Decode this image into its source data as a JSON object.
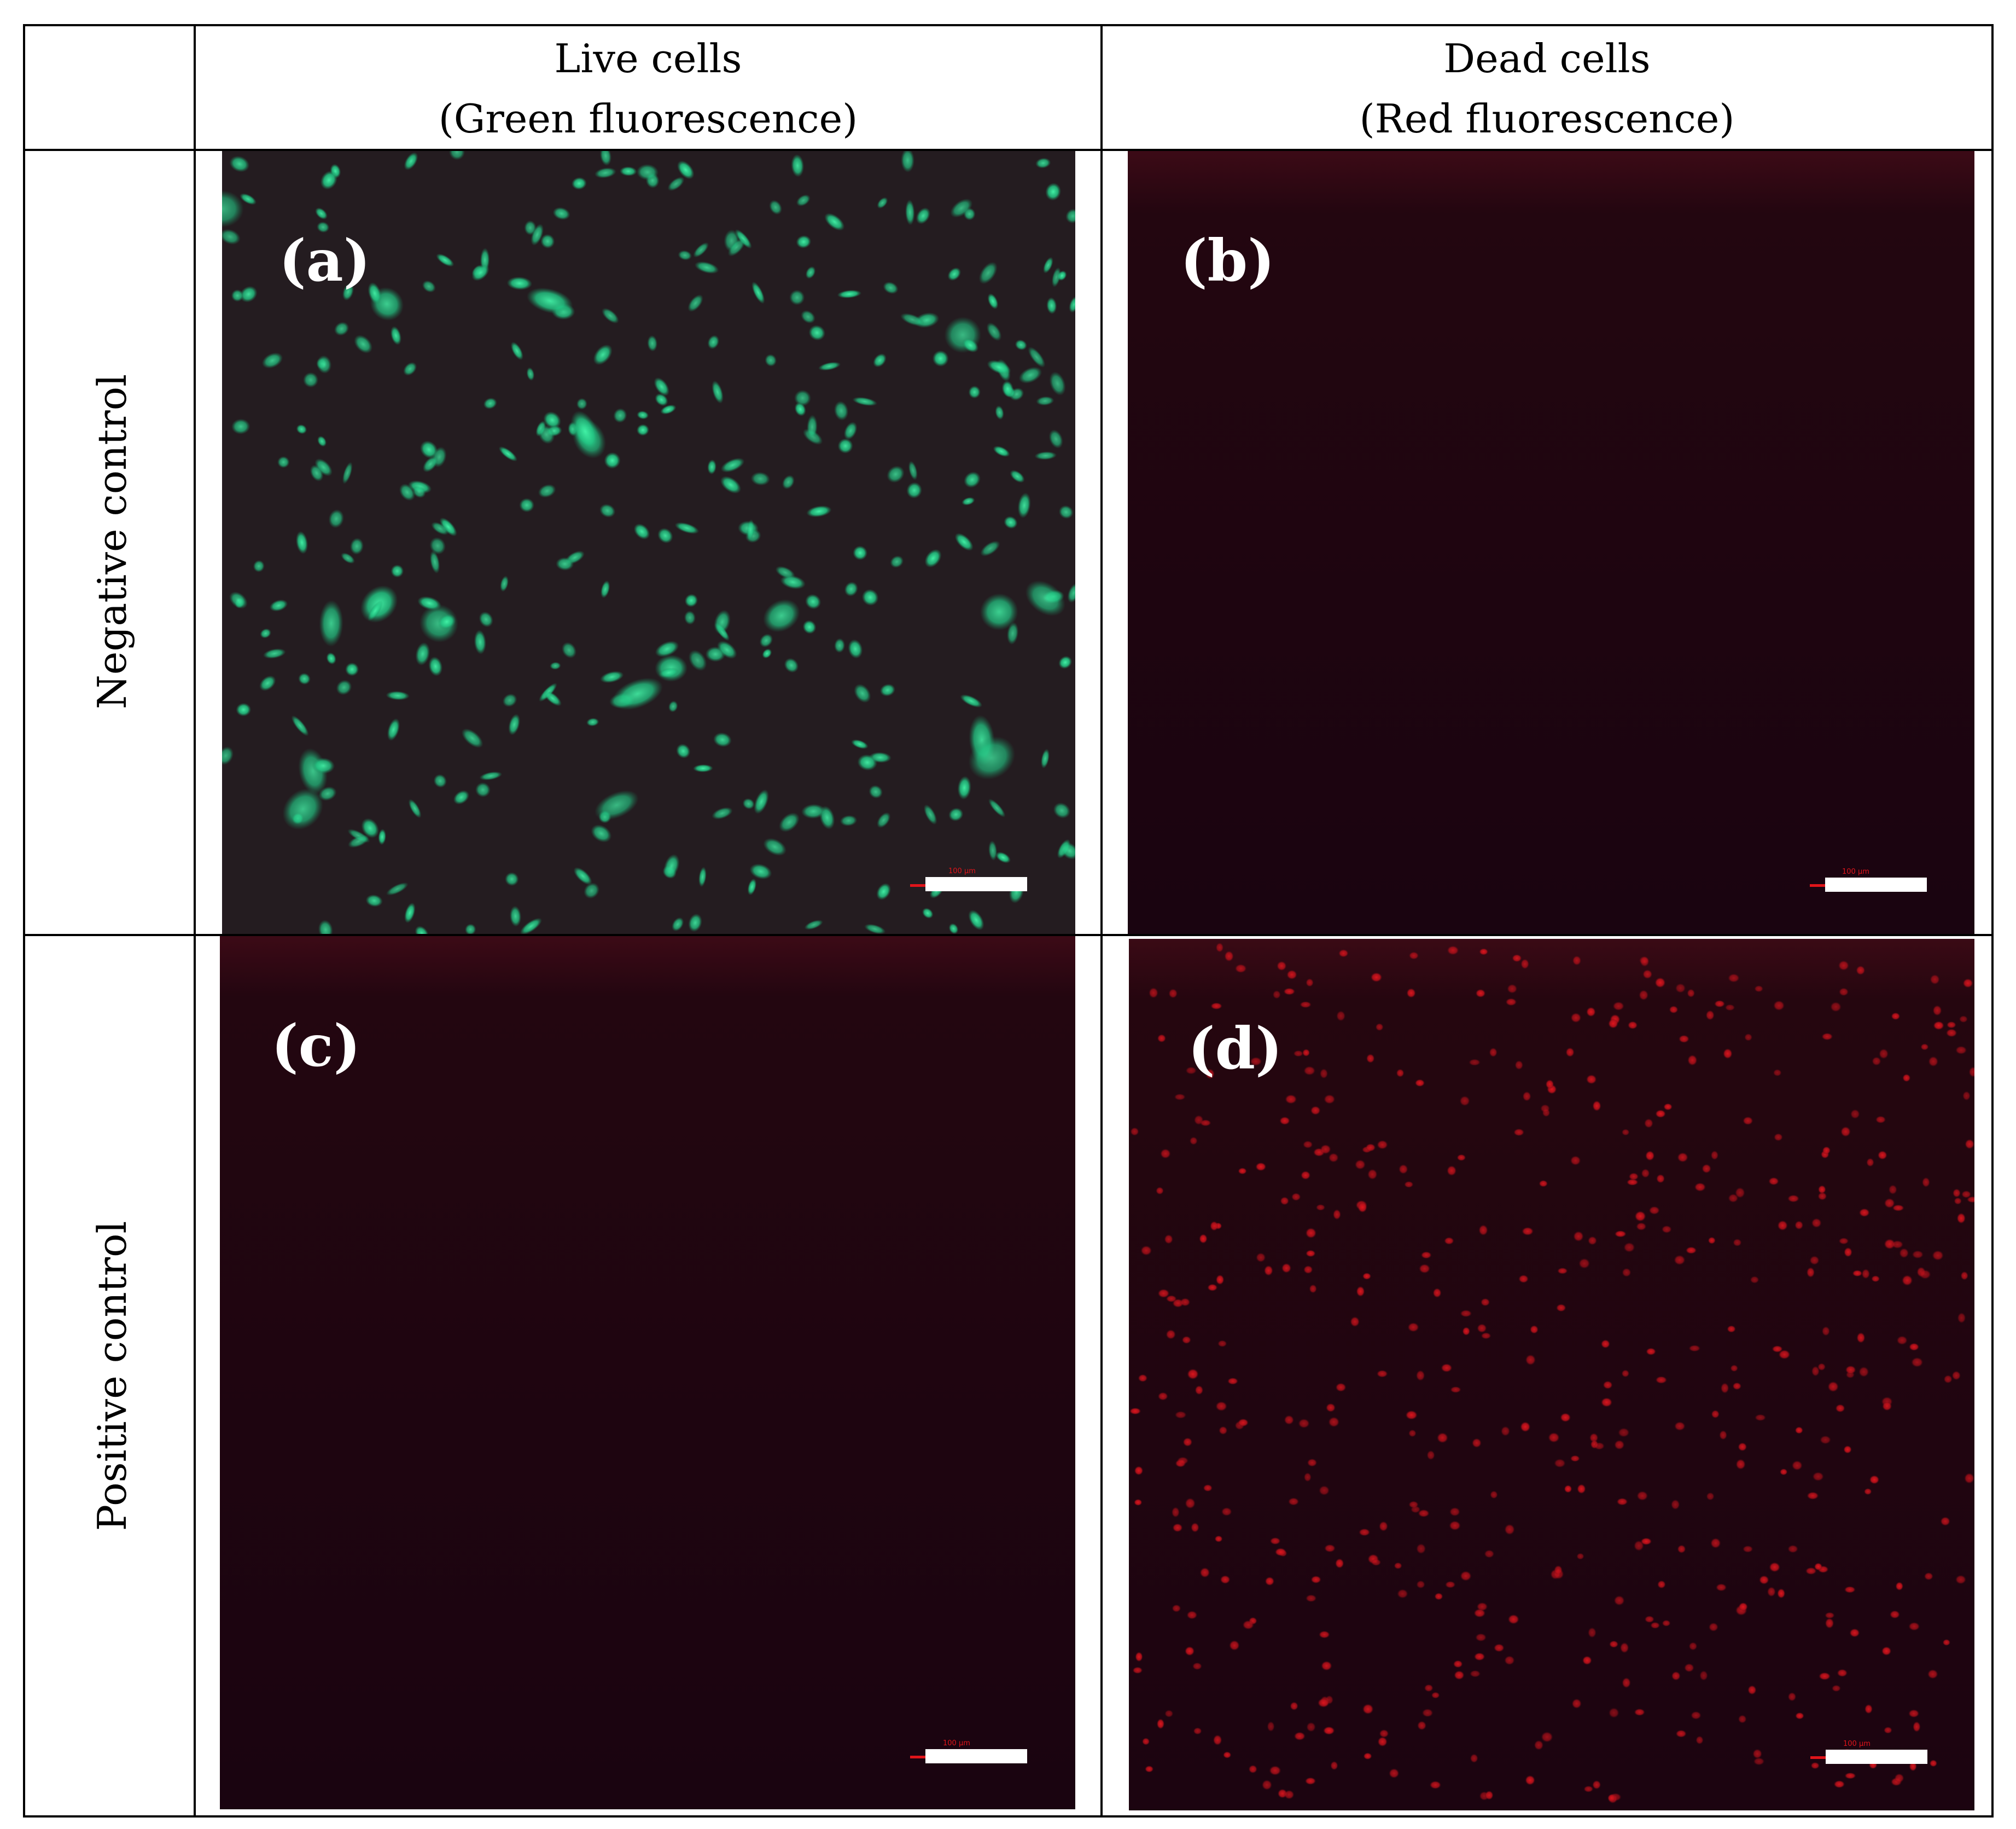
{
  "figure": {
    "column_headers": [
      {
        "line1": "Live cells",
        "line2": "(Green fluorescence)"
      },
      {
        "line1": "Dead cells",
        "line2": "(Red fluorescence)"
      }
    ],
    "row_labels": [
      "Negative control",
      "Positive control"
    ],
    "panels": [
      {
        "label": "(a)",
        "stain": "green",
        "scale_text": "100 µm"
      },
      {
        "label": "(b)",
        "stain": "red-background",
        "scale_text": "100 µm"
      },
      {
        "label": "(c)",
        "stain": "red-background",
        "scale_text": "100 µm"
      },
      {
        "label": "(d)",
        "stain": "red-dots",
        "scale_text": "100 µm"
      }
    ],
    "colors": {
      "green_cell": "#2ee89a",
      "red_cell": "#d5141c",
      "dark_background": "#1a0410",
      "scale_bar": "#ffffff",
      "scale_marker": "#e0141a"
    }
  }
}
